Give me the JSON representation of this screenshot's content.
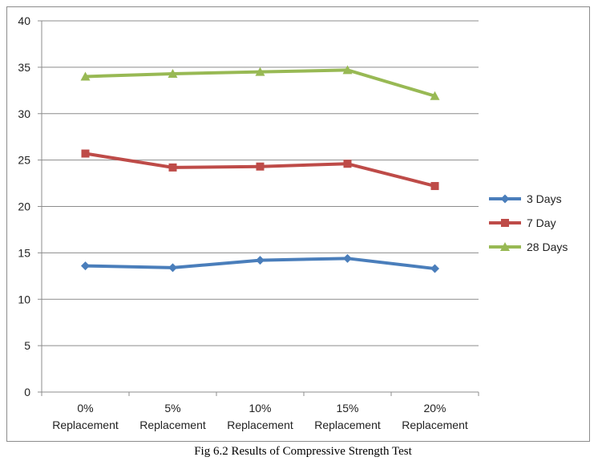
{
  "caption": "Fig 6.2 Results of Compressive Strength Test",
  "chart_data": {
    "type": "line",
    "title": "",
    "xlabel": "",
    "ylabel": "",
    "categories": [
      [
        "0%",
        "Replacement"
      ],
      [
        "5%",
        "Replacement"
      ],
      [
        "10%",
        "Replacement"
      ],
      [
        "15%",
        "Replacement"
      ],
      [
        "20%",
        "Replacement"
      ]
    ],
    "ylim": [
      0,
      40
    ],
    "yticks": [
      0,
      5,
      10,
      15,
      20,
      25,
      30,
      35,
      40
    ],
    "grid": true,
    "legend_position": "right",
    "series": [
      {
        "name": "3 Days",
        "color": "#4a7ebb",
        "marker": "diamond",
        "values": [
          13.6,
          13.4,
          14.2,
          14.4,
          13.3
        ]
      },
      {
        "name": "7 Day",
        "color": "#be4b48",
        "marker": "square",
        "values": [
          25.7,
          24.2,
          24.3,
          24.6,
          22.2
        ]
      },
      {
        "name": "28 Days",
        "color": "#98b954",
        "marker": "triangle",
        "values": [
          34.0,
          34.3,
          34.5,
          34.7,
          31.9
        ]
      }
    ]
  }
}
